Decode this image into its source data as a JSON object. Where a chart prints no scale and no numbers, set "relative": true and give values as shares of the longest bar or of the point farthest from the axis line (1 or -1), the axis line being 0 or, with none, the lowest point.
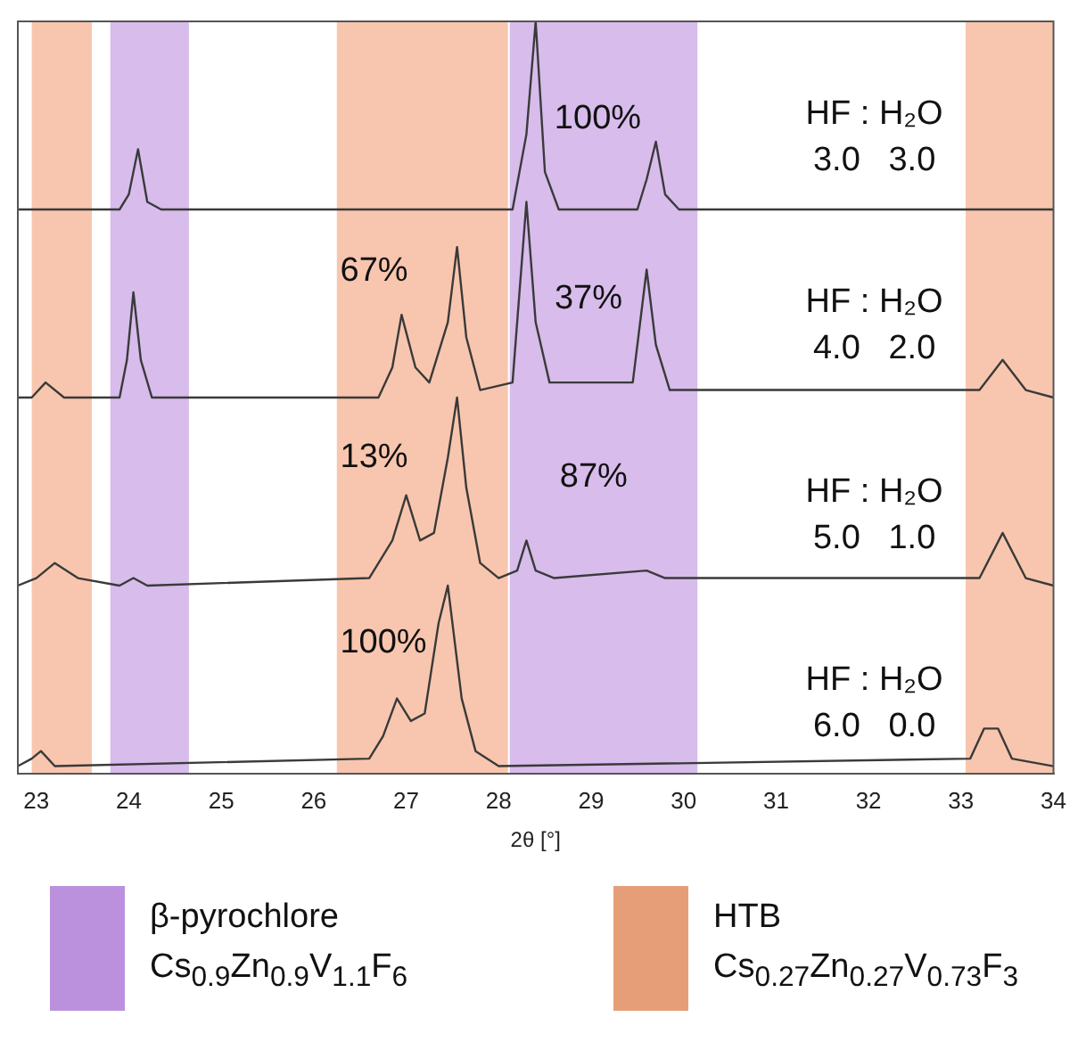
{
  "chart_data": {
    "type": "line",
    "relative": true,
    "xlabel": "2θ [°]",
    "xlim": [
      22.8,
      34
    ],
    "xticks": [
      23,
      24,
      25,
      26,
      27,
      28,
      29,
      30,
      31,
      32,
      33,
      34
    ],
    "grid": false,
    "marker": "none",
    "line_style": "solid",
    "series": [
      {
        "color": "#3a3a3a",
        "x": [
          22.8,
          23.9,
          24.0,
          24.1,
          24.2,
          24.35,
          28.15,
          28.3,
          28.4,
          28.5,
          28.65,
          29.5,
          29.6,
          29.7,
          29.8,
          29.95,
          34
        ],
        "values": [
          0.75,
          0.75,
          0.77,
          0.83,
          0.76,
          0.75,
          0.75,
          0.85,
          1.0,
          0.8,
          0.75,
          0.75,
          0.79,
          0.84,
          0.77,
          0.75,
          0.75
        ]
      },
      {
        "color": "#3a3a3a",
        "x": [
          22.8,
          22.95,
          23.1,
          23.3,
          23.9,
          23.98,
          24.05,
          24.13,
          24.25,
          26.7,
          26.85,
          26.95,
          27.1,
          27.25,
          27.45,
          27.55,
          27.65,
          27.8,
          28.15,
          28.3,
          28.4,
          28.55,
          29.45,
          29.6,
          29.7,
          29.85,
          33.2,
          33.45,
          33.7,
          34
        ],
        "values": [
          0.5,
          0.5,
          0.52,
          0.5,
          0.5,
          0.55,
          0.64,
          0.55,
          0.5,
          0.5,
          0.54,
          0.61,
          0.54,
          0.52,
          0.6,
          0.7,
          0.58,
          0.51,
          0.52,
          0.76,
          0.6,
          0.52,
          0.52,
          0.67,
          0.57,
          0.51,
          0.51,
          0.55,
          0.51,
          0.5
        ]
      },
      {
        "color": "#3a3a3a",
        "x": [
          22.8,
          23.0,
          23.2,
          23.45,
          23.9,
          24.05,
          24.2,
          26.6,
          26.85,
          27.0,
          27.15,
          27.3,
          27.45,
          27.55,
          27.65,
          27.8,
          28.0,
          28.2,
          28.3,
          28.4,
          28.6,
          29.6,
          29.8,
          33.2,
          33.45,
          33.7,
          34
        ],
        "values": [
          0.25,
          0.26,
          0.28,
          0.26,
          0.25,
          0.26,
          0.25,
          0.26,
          0.31,
          0.37,
          0.31,
          0.32,
          0.42,
          0.5,
          0.38,
          0.28,
          0.26,
          0.27,
          0.31,
          0.27,
          0.26,
          0.27,
          0.26,
          0.26,
          0.32,
          0.26,
          0.25
        ]
      },
      {
        "color": "#3a3a3a",
        "x": [
          22.8,
          22.95,
          23.05,
          23.2,
          26.6,
          26.75,
          26.9,
          27.05,
          27.2,
          27.35,
          27.45,
          27.6,
          27.75,
          28.0,
          33.1,
          33.25,
          33.4,
          33.55,
          34
        ],
        "values": [
          0.01,
          0.02,
          0.03,
          0.01,
          0.02,
          0.05,
          0.1,
          0.07,
          0.08,
          0.2,
          0.25,
          0.1,
          0.03,
          0.01,
          0.02,
          0.06,
          0.06,
          0.02,
          0.01
        ]
      }
    ],
    "bands": [
      {
        "axis": "x",
        "from": 22.95,
        "to": 23.6,
        "label": "HTB\nCs$_{0.27}$Zn$_{0.27}$V$_{0.73}$F$_{3}$",
        "color": "#f5b393"
      },
      {
        "axis": "x",
        "from": 23.8,
        "to": 24.65,
        "label": "β-pyrochlore\nCs$_{0.9}$Zn$_{0.9}$V$_{1.1}$F$_{6}$",
        "color": "#c9a5e6"
      },
      {
        "axis": "x",
        "from": 26.25,
        "to": 28.1,
        "color": "#f5b393"
      },
      {
        "axis": "x",
        "from": 28.12,
        "to": 30.15,
        "color": "#c9a5e6"
      },
      {
        "axis": "x",
        "from": 33.05,
        "to": 34,
        "color": "#f5b393"
      }
    ],
    "annotations": [
      "100%",
      "67%",
      "37%",
      "13%",
      "87%",
      "100%",
      "HF : H₂O\n3.0   3.0",
      "HF : H₂O\n4.0   2.0",
      "HF : H₂O\n5.0   1.0",
      "HF : H₂O\n6.0   0.0"
    ]
  }
}
